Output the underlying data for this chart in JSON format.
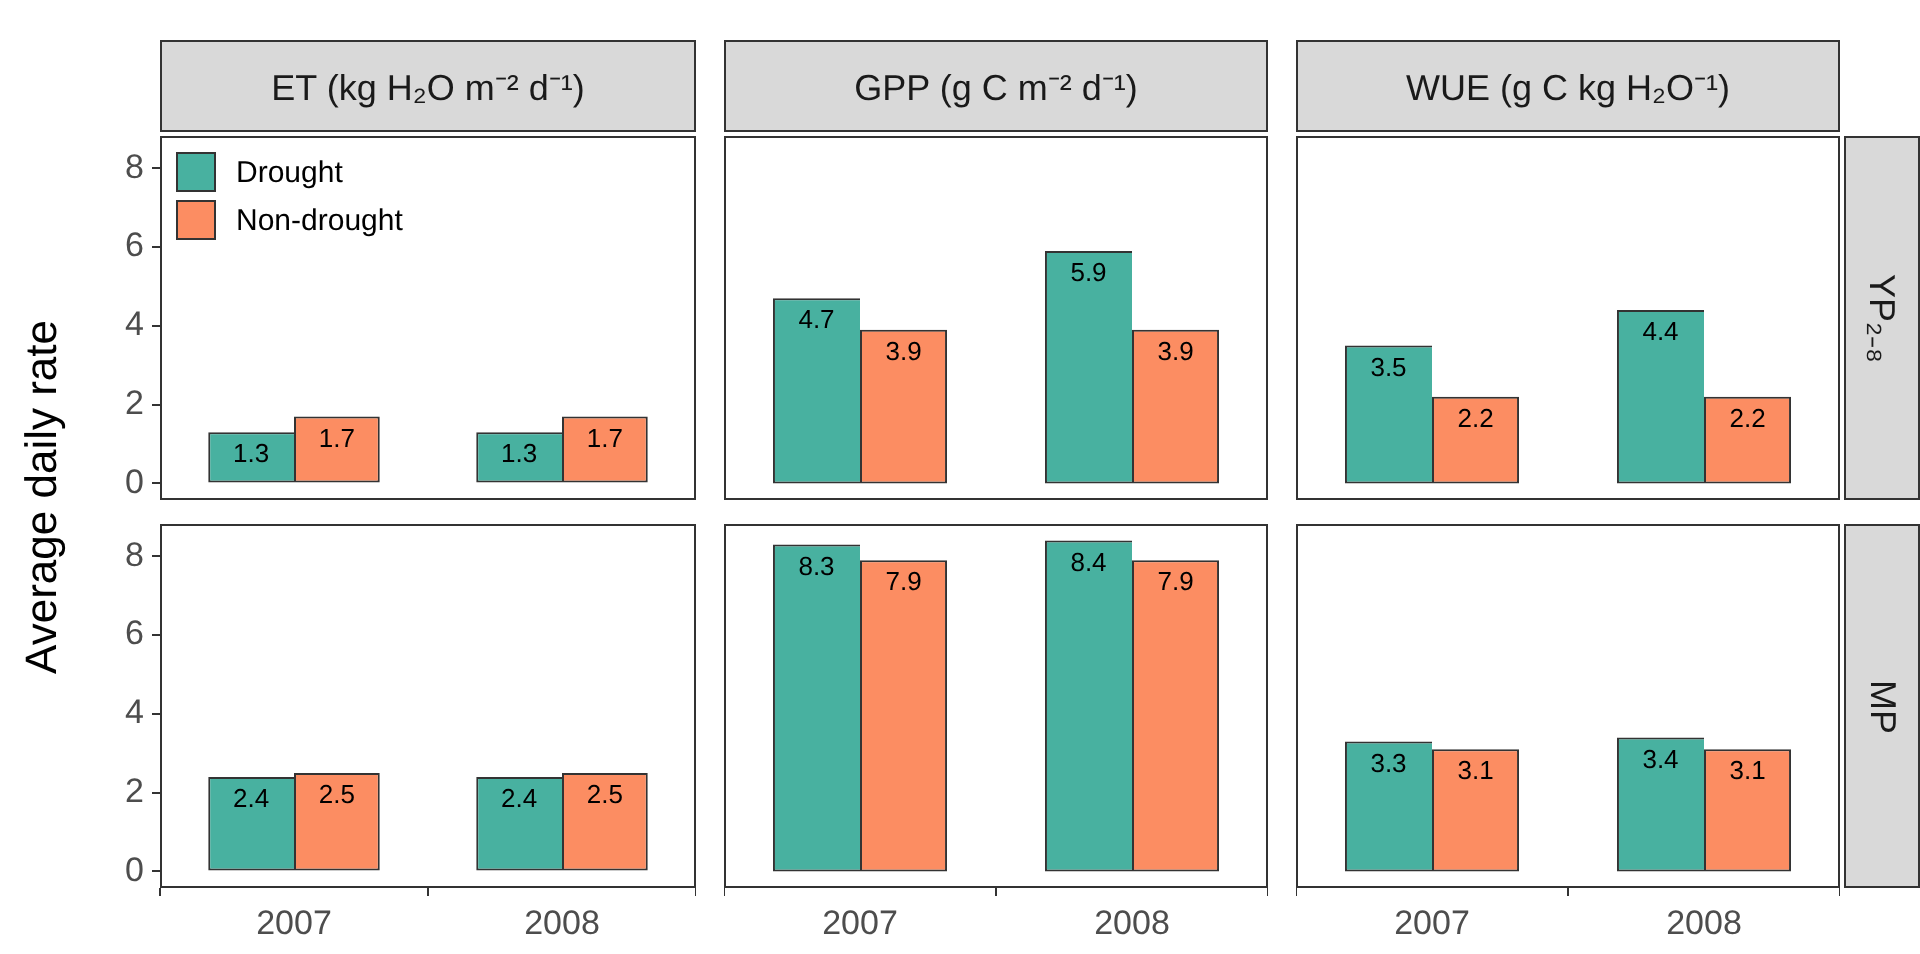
{
  "chart_data": [
    {
      "type": "bar",
      "title": "ET (kg H₂O m⁻² d⁻¹)",
      "ylabel": "Average daily rate",
      "categories": [
        "2007",
        "2008"
      ],
      "series": [
        {
          "name": "Drought",
          "color": "#48b1a0",
          "values": [
            1.3,
            1.3
          ]
        },
        {
          "name": "Non-drought",
          "color": "#fc8d62",
          "values": [
            1.7,
            1.7
          ]
        }
      ],
      "ylim": [
        -0.42,
        8.82
      ],
      "yticks": [
        0,
        2,
        4,
        6,
        8
      ],
      "data_labels": true,
      "legend": "top left",
      "tick_labels": "y"
    },
    {
      "type": "bar",
      "title": "GPP (g C m⁻² d⁻¹)",
      "categories": [
        "2007",
        "2008"
      ],
      "series": [
        {
          "color": "#48b1a0",
          "values": [
            4.7,
            5.9
          ]
        },
        {
          "color": "#fc8d62",
          "values": [
            3.9,
            3.9
          ]
        }
      ],
      "ylim": [
        -0.42,
        8.82
      ],
      "yticks": [
        0,
        2,
        4,
        6,
        8
      ],
      "data_labels": true,
      "tick_labels": false
    },
    {
      "type": "bar",
      "title": "WUE (g C kg H₂O⁻¹)",
      "y2label": "YP₂₋₈",
      "categories": [
        "2007",
        "2008"
      ],
      "series": [
        {
          "color": "#48b1a0",
          "values": [
            3.5,
            4.4
          ]
        },
        {
          "color": "#fc8d62",
          "values": [
            2.2,
            2.2
          ]
        }
      ],
      "ylim": [
        -0.42,
        8.82
      ],
      "yticks": [
        0,
        2,
        4,
        6,
        8
      ],
      "data_labels": true,
      "tick_labels": false
    },
    {
      "type": "bar",
      "categories": [
        "2007",
        "2008"
      ],
      "series": [
        {
          "color": "#48b1a0",
          "values": [
            2.4,
            2.4
          ]
        },
        {
          "color": "#fc8d62",
          "values": [
            2.5,
            2.5
          ]
        }
      ],
      "ylim": [
        -0.42,
        8.82
      ],
      "yticks": [
        0,
        2,
        4,
        6,
        8
      ],
      "data_labels": true
    },
    {
      "type": "bar",
      "categories": [
        "2007",
        "2008"
      ],
      "series": [
        {
          "color": "#48b1a0",
          "values": [
            8.3,
            8.4
          ]
        },
        {
          "color": "#fc8d62",
          "values": [
            7.9,
            7.9
          ]
        }
      ],
      "ylim": [
        -0.42,
        8.82
      ],
      "yticks": [
        0,
        2,
        4,
        6,
        8
      ],
      "data_labels": true,
      "tick_labels": "x"
    },
    {
      "type": "bar",
      "y2label": "MP",
      "categories": [
        "2007",
        "2008"
      ],
      "series": [
        {
          "color": "#48b1a0",
          "values": [
            3.3,
            3.4
          ]
        },
        {
          "color": "#fc8d62",
          "values": [
            3.1,
            3.1
          ]
        }
      ],
      "ylim": [
        -0.42,
        8.82
      ],
      "yticks": [
        0,
        2,
        4,
        6,
        8
      ],
      "data_labels": true,
      "tick_labels": "x"
    }
  ]
}
